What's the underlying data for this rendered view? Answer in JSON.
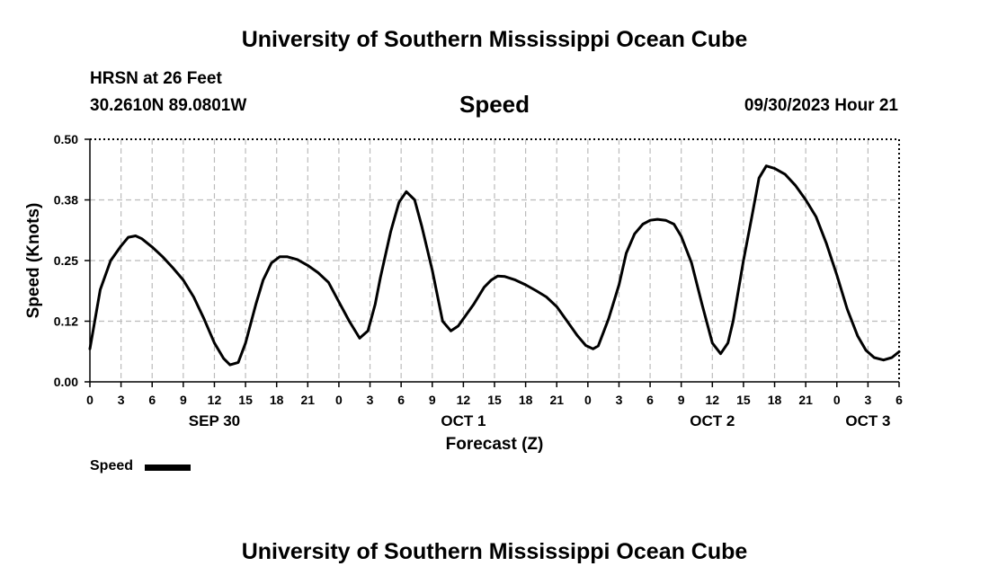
{
  "header": {
    "title": "University of Southern Mississippi Ocean Cube",
    "station": "HRSN at 26 Feet",
    "coords": "30.2610N  89.0801W",
    "variable": "Speed",
    "datetime": "09/30/2023 Hour 21"
  },
  "footer": {
    "title": "University of Southern Mississippi Ocean Cube"
  },
  "legend": {
    "label": "Speed",
    "color": "#000000"
  },
  "chart_data": {
    "type": "line",
    "title": "Speed",
    "xlabel": "Forecast (Z)",
    "ylabel": "Speed (Knots)",
    "xlim": [
      0,
      78
    ],
    "ylim": [
      0,
      0.5
    ],
    "grid": true,
    "yticks": [
      {
        "value": 0.0,
        "label": "0.00"
      },
      {
        "value": 0.125,
        "label": "0.12"
      },
      {
        "value": 0.25,
        "label": "0.25"
      },
      {
        "value": 0.375,
        "label": "0.38"
      },
      {
        "value": 0.5,
        "label": "0.50"
      }
    ],
    "xticks": [
      {
        "value": 0,
        "label": "0"
      },
      {
        "value": 3,
        "label": "3"
      },
      {
        "value": 6,
        "label": "6"
      },
      {
        "value": 9,
        "label": "9"
      },
      {
        "value": 12,
        "label": "12"
      },
      {
        "value": 15,
        "label": "15"
      },
      {
        "value": 18,
        "label": "18"
      },
      {
        "value": 21,
        "label": "21"
      },
      {
        "value": 24,
        "label": "0"
      },
      {
        "value": 27,
        "label": "3"
      },
      {
        "value": 30,
        "label": "6"
      },
      {
        "value": 33,
        "label": "9"
      },
      {
        "value": 36,
        "label": "12"
      },
      {
        "value": 39,
        "label": "15"
      },
      {
        "value": 42,
        "label": "18"
      },
      {
        "value": 45,
        "label": "21"
      },
      {
        "value": 48,
        "label": "0"
      },
      {
        "value": 51,
        "label": "3"
      },
      {
        "value": 54,
        "label": "6"
      },
      {
        "value": 57,
        "label": "9"
      },
      {
        "value": 60,
        "label": "12"
      },
      {
        "value": 63,
        "label": "15"
      },
      {
        "value": 66,
        "label": "18"
      },
      {
        "value": 69,
        "label": "21"
      },
      {
        "value": 72,
        "label": "0"
      },
      {
        "value": 75,
        "label": "3"
      },
      {
        "value": 78,
        "label": "6"
      }
    ],
    "day_labels": [
      {
        "value": 12,
        "label": "SEP 30"
      },
      {
        "value": 36,
        "label": "OCT 1"
      },
      {
        "value": 60,
        "label": "OCT 2"
      },
      {
        "value": 75,
        "label": "OCT 3"
      }
    ],
    "series": [
      {
        "name": "Speed",
        "x": [
          0,
          1,
          2,
          3,
          3.7,
          4.4,
          5,
          6,
          7,
          8,
          9,
          10,
          11,
          12,
          12.9,
          13.5,
          14.3,
          15,
          16,
          16.7,
          17.5,
          18.3,
          19,
          20,
          21,
          22,
          23,
          24,
          25,
          26,
          26.8,
          27.5,
          28,
          29,
          29.8,
          30.5,
          31.3,
          32,
          33,
          34,
          34.8,
          35.5,
          36,
          37,
          38,
          38.7,
          39.3,
          40,
          41,
          42,
          43,
          44,
          45,
          46,
          47,
          47.8,
          48.5,
          49,
          50,
          51,
          51.7,
          52.5,
          53.3,
          54,
          54.7,
          55.5,
          56.3,
          57,
          58,
          59,
          60,
          60.8,
          61.5,
          62,
          63,
          63.8,
          64.5,
          65.2,
          66,
          67,
          68,
          69,
          70,
          71,
          72,
          73,
          74,
          74.8,
          75.6,
          76.5,
          77.3,
          78
        ],
        "values": [
          0.068,
          0.19,
          0.25,
          0.28,
          0.298,
          0.301,
          0.295,
          0.278,
          0.258,
          0.235,
          0.21,
          0.175,
          0.13,
          0.08,
          0.048,
          0.035,
          0.04,
          0.08,
          0.16,
          0.21,
          0.245,
          0.258,
          0.258,
          0.252,
          0.24,
          0.225,
          0.205,
          0.165,
          0.125,
          0.09,
          0.105,
          0.16,
          0.215,
          0.31,
          0.37,
          0.392,
          0.375,
          0.32,
          0.23,
          0.125,
          0.105,
          0.115,
          0.13,
          0.16,
          0.195,
          0.21,
          0.218,
          0.217,
          0.21,
          0.2,
          0.188,
          0.175,
          0.155,
          0.125,
          0.095,
          0.075,
          0.068,
          0.074,
          0.13,
          0.2,
          0.265,
          0.305,
          0.325,
          0.333,
          0.335,
          0.333,
          0.325,
          0.3,
          0.245,
          0.16,
          0.08,
          0.058,
          0.08,
          0.125,
          0.25,
          0.34,
          0.42,
          0.445,
          0.44,
          0.428,
          0.405,
          0.375,
          0.34,
          0.285,
          0.22,
          0.15,
          0.095,
          0.065,
          0.05,
          0.045,
          0.05,
          0.062
        ]
      }
    ]
  }
}
